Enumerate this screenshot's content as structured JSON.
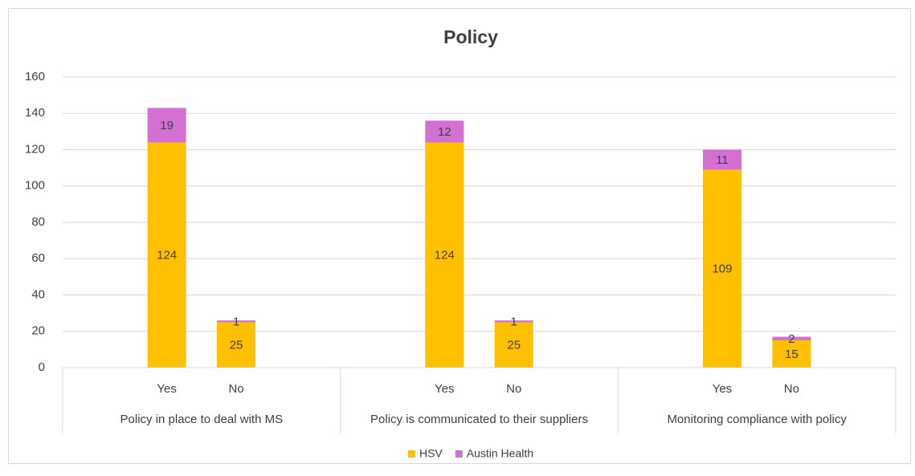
{
  "chart_data": {
    "type": "stacked_bar",
    "title": "Policy",
    "categories": [
      "Yes",
      "No",
      "Yes",
      "No",
      "Yes",
      "No"
    ],
    "category_groups": [
      "Policy in place to deal with MS",
      "Policy is communicated to their suppliers",
      "Monitoring compliance with policy"
    ],
    "series": [
      {
        "name": "HSV",
        "color": "#ffc000",
        "values": [
          124,
          25,
          124,
          25,
          109,
          15
        ]
      },
      {
        "name": "Austin Health",
        "color": "#d46fd4",
        "values": [
          19,
          1,
          12,
          1,
          11,
          2
        ]
      }
    ],
    "ylim": [
      0,
      160
    ],
    "yticks": [
      0,
      20,
      40,
      60,
      80,
      100,
      120,
      140,
      160
    ],
    "grid": true,
    "legend": "bottom",
    "data_labels": true
  }
}
